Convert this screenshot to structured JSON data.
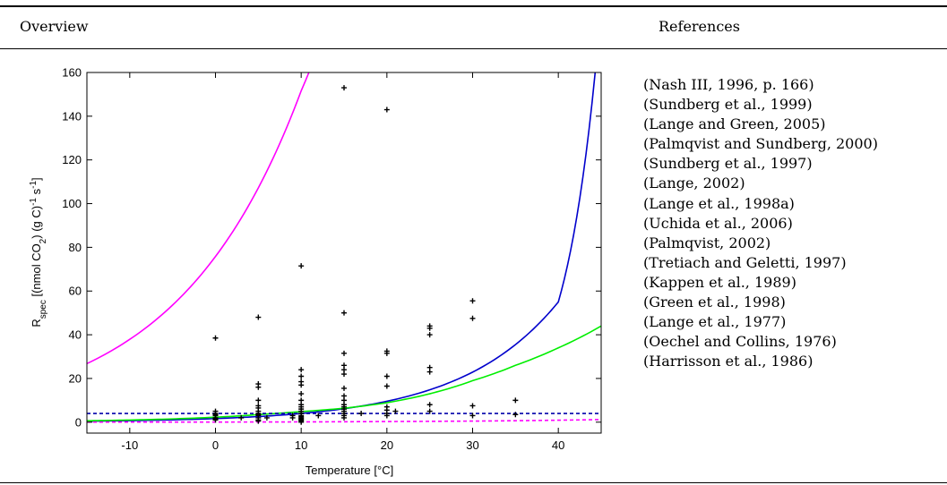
{
  "table": {
    "col1_header": "Overview",
    "col2_header": "References"
  },
  "references": [
    "(Nash III, 1996, p. 166)",
    "(Sundberg et al., 1999)",
    "(Lange and Green, 2005)",
    "(Palmqvist and Sundberg, 2000)",
    "(Sundberg et al., 1997)",
    "(Lange, 2002)",
    "(Lange et al., 1998a)",
    "(Uchida et al., 2006)",
    "(Palmqvist, 2002)",
    "(Tretiach and Geletti, 1997)",
    "(Kappen et al., 1989)",
    "(Green et al., 1998)",
    "(Lange et al., 1977)",
    "(Oechel and Collins, 1976)",
    "(Harrisson et al., 1986)"
  ],
  "chart_data": {
    "type": "scatter",
    "xlabel": "Temperature [°C]",
    "ylabel": "R_spec [(nmol CO2) (g C)^-1 s^-1]",
    "xlim": [
      -15,
      45
    ],
    "ylim": [
      -5,
      160
    ],
    "xticks": [
      -10,
      0,
      10,
      20,
      30,
      40
    ],
    "yticks": [
      0,
      20,
      40,
      60,
      80,
      100,
      120,
      140,
      160
    ],
    "grid": false,
    "legend": "none",
    "points": {
      "x": [
        0,
        0,
        0,
        0,
        0,
        0,
        0,
        0,
        3,
        5,
        5,
        5,
        5,
        5,
        5,
        5,
        5,
        5,
        5,
        5,
        5,
        5,
        6,
        9,
        9,
        10,
        10,
        10,
        10,
        10,
        10,
        10,
        10,
        10,
        10,
        10,
        10,
        10,
        10,
        10,
        10,
        10,
        10,
        10,
        12,
        15,
        15,
        15,
        15,
        15,
        15,
        15,
        15,
        15,
        15,
        15,
        15,
        15,
        15,
        15,
        15,
        17,
        20,
        20,
        20,
        20,
        20,
        20,
        20,
        20,
        20,
        21,
        25,
        25,
        25,
        25,
        25,
        25,
        25,
        30,
        30,
        30,
        30,
        35,
        35
      ],
      "y": [
        38.5,
        5,
        4,
        3.5,
        3,
        2,
        1.5,
        1,
        2,
        48,
        17.5,
        16,
        10,
        7.5,
        6.5,
        5,
        4,
        3.5,
        3,
        2,
        1,
        0.5,
        2,
        3,
        2,
        71.5,
        24,
        21,
        18.5,
        17,
        13,
        10,
        8,
        7,
        6,
        5,
        4,
        3,
        2.5,
        2,
        1.5,
        1,
        0.5,
        0,
        3,
        153,
        50,
        31.5,
        26,
        24,
        22,
        15.5,
        12,
        10,
        8,
        7,
        6,
        5,
        4,
        3,
        2,
        4,
        143,
        32.5,
        31.5,
        21,
        16.5,
        7,
        5.5,
        4,
        3,
        5,
        44,
        43,
        40,
        25,
        23,
        8,
        5,
        55.5,
        47.5,
        7.5,
        3,
        10,
        3.5
      ]
    },
    "curves": [
      {
        "color": "#ff00ff",
        "style": "solid",
        "x": [
          -15,
          -10,
          -5,
          0,
          5,
          10,
          10.9
        ],
        "y": [
          26.8,
          37.9,
          53.6,
          75.8,
          107.2,
          151.6,
          160
        ]
      },
      {
        "color": "#0000cc",
        "style": "solid",
        "x": [
          -15,
          -10,
          -5,
          0,
          5,
          10,
          15,
          20,
          25,
          30,
          35,
          40,
          44.3
        ],
        "y": [
          0.45,
          0.69,
          1.07,
          1.66,
          2.57,
          3.98,
          6.17,
          9.56,
          14.8,
          22.9,
          35.5,
          55.0,
          160
        ]
      },
      {
        "color": "#00ee00",
        "style": "solid",
        "x": [
          -15,
          -10,
          -5,
          0,
          5,
          10,
          15,
          20,
          25,
          30,
          35,
          40,
          45
        ],
        "y": [
          0.65,
          0.99,
          1.5,
          2.28,
          3.46,
          4.84,
          6.37,
          8.9,
          13.0,
          19.0,
          26.0,
          34.0,
          44.0
        ]
      },
      {
        "color": "#0000aa",
        "style": "dashed",
        "x": [
          -15,
          45
        ],
        "y": [
          4,
          4
        ]
      },
      {
        "color": "#ff00ff",
        "style": "dashed",
        "x": [
          -15,
          0,
          10,
          20,
          30,
          40,
          45
        ],
        "y": [
          0.01,
          0.05,
          0.13,
          0.3,
          0.5,
          0.9,
          1.2
        ]
      }
    ]
  }
}
